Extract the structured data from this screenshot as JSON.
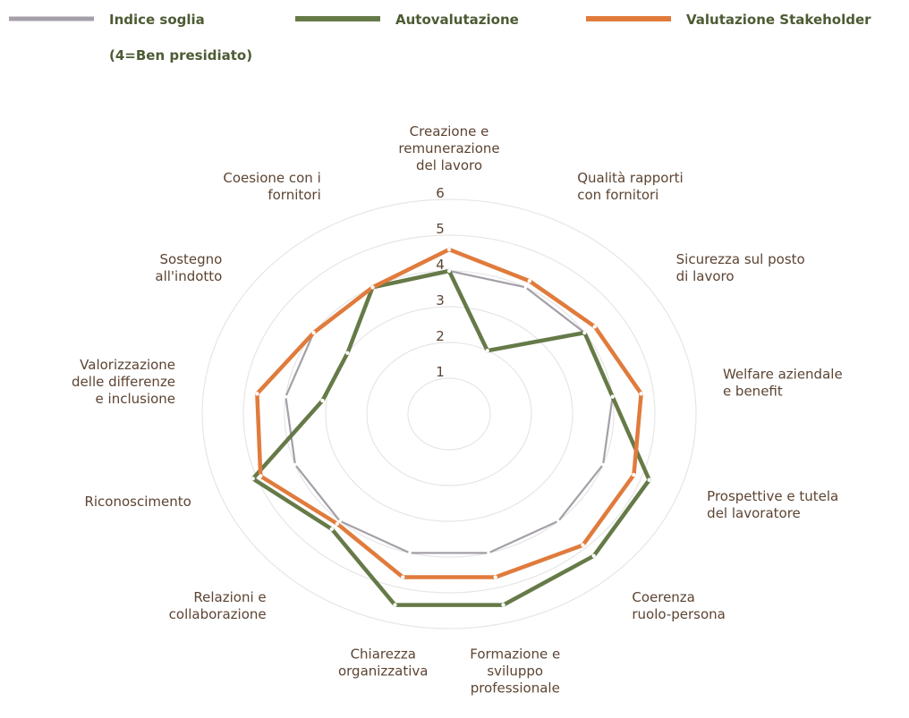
{
  "chart_data": {
    "type": "radar",
    "categories": [
      [
        "Creazione e",
        "remunerazione",
        "del lavoro"
      ],
      [
        "Qualità rapporti",
        "con fornitori"
      ],
      [
        "Sicurezza sul posto",
        "di lavoro"
      ],
      [
        "Welfare aziendale",
        "e benefit"
      ],
      [
        "Prospettive e tutela",
        "del lavoratore"
      ],
      [
        "Coerenza",
        "ruolo-persona"
      ],
      [
        "Formazione e",
        "sviluppo",
        "professionale"
      ],
      [
        "Chiarezza",
        "organizzativa"
      ],
      [
        "Relazioni e",
        "collaborazione"
      ],
      [
        "Riconoscimento"
      ],
      [
        "Valorizzazione",
        "delle differenze",
        "e inclusione"
      ],
      [
        "Sostegno",
        "all'indotto"
      ],
      [
        "Coesione con i",
        "fornitori"
      ]
    ],
    "series": [
      {
        "name": "Indice soglia",
        "color": "#a59fa8",
        "values": [
          4,
          4,
          4,
          4,
          4,
          4,
          4,
          4,
          4,
          4,
          4,
          4,
          4
        ]
      },
      {
        "name": "Autovalutazione",
        "color": "#667a48",
        "values": [
          4.0,
          2.0,
          4.0,
          4.0,
          5.2,
          5.3,
          5.5,
          5.5,
          4.3,
          5.1,
          3.1,
          3.0,
          4.0
        ]
      },
      {
        "name": "Valutazione Stakeholder",
        "color": "#e07b3c",
        "values": [
          4.6,
          4.2,
          4.3,
          4.7,
          4.8,
          4.9,
          4.7,
          4.7,
          4.1,
          4.9,
          4.7,
          4.0,
          4.0
        ]
      }
    ],
    "legend_note": "(4=Ben presidiato)",
    "rlim": [
      0,
      6
    ],
    "rticks": [
      1,
      2,
      3,
      4,
      5,
      6
    ],
    "grid": true
  }
}
